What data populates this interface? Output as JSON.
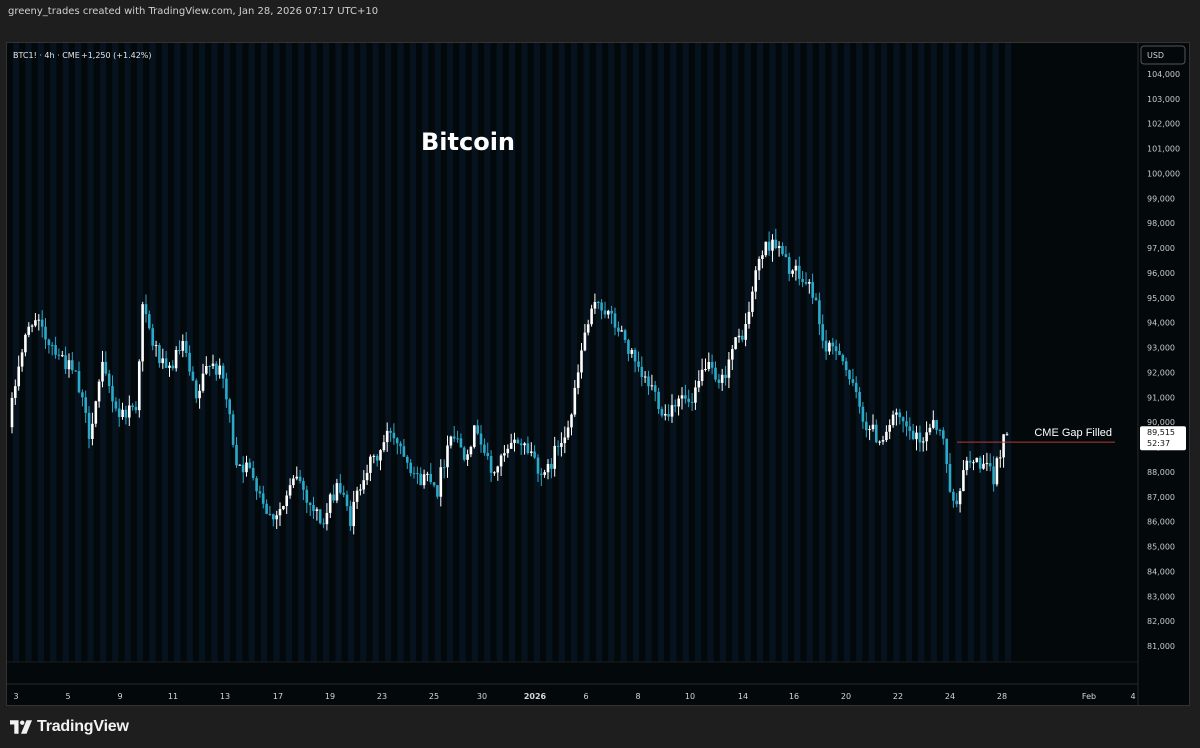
{
  "header": {
    "credit": "greeny_trades created with TradingView.com, Jan 28, 2026 07:17 UTC+10"
  },
  "footer": {
    "brand": "TradingView"
  },
  "colors": {
    "up": "#ffffff",
    "down": "#2aa9c9",
    "background": "#03080b",
    "stripe": "#06121d",
    "gap_line": "#b23b3b"
  },
  "chart_data": {
    "type": "candlestick",
    "title": "Bitcoin",
    "symbol_info": "BTC1! · 4h · CME",
    "change": "+1,250 (+1.42%)",
    "currency": "USD",
    "price_axis": {
      "min": 80000,
      "max": 105000,
      "ticks": [
        "104,000",
        "103,000",
        "102,000",
        "101,000",
        "100,000",
        "99,000",
        "98,000",
        "97,000",
        "96,000",
        "95,000",
        "94,000",
        "93,000",
        "92,000",
        "91,000",
        "90,000",
        "89,000",
        "88,000",
        "87,000",
        "86,000",
        "85,000",
        "84,000",
        "83,000",
        "82,000",
        "81,000"
      ]
    },
    "date_axis": [
      "3",
      "5",
      "9",
      "11",
      "13",
      "17",
      "19",
      "23",
      "25",
      "30",
      "2026",
      "6",
      "8",
      "10",
      "14",
      "16",
      "20",
      "22",
      "24",
      "28",
      "Feb",
      "4"
    ],
    "last_price": {
      "price": "89,515",
      "countdown": "52:37",
      "value": 89515
    },
    "annotation": {
      "label": "CME Gap Filled",
      "price": 89200
    },
    "path": [
      [
        0,
        89800
      ],
      [
        3,
        92400
      ],
      [
        7,
        94200
      ],
      [
        10,
        93600
      ],
      [
        14,
        93000
      ],
      [
        20,
        91800
      ],
      [
        24,
        89600
      ],
      [
        28,
        92100
      ],
      [
        33,
        90300
      ],
      [
        38,
        90700
      ],
      [
        40,
        94600
      ],
      [
        43,
        93200
      ],
      [
        47,
        91900
      ],
      [
        52,
        93100
      ],
      [
        56,
        90800
      ],
      [
        60,
        92600
      ],
      [
        64,
        91700
      ],
      [
        68,
        88500
      ],
      [
        73,
        87900
      ],
      [
        78,
        86200
      ],
      [
        82,
        86600
      ],
      [
        86,
        87900
      ],
      [
        90,
        86700
      ],
      [
        94,
        85900
      ],
      [
        98,
        87600
      ],
      [
        102,
        86100
      ],
      [
        106,
        88000
      ],
      [
        110,
        88600
      ],
      [
        114,
        89700
      ],
      [
        118,
        88900
      ],
      [
        122,
        87700
      ],
      [
        126,
        87900
      ],
      [
        128,
        87300
      ],
      [
        132,
        89700
      ],
      [
        136,
        88800
      ],
      [
        140,
        89800
      ],
      [
        144,
        87900
      ],
      [
        148,
        88600
      ],
      [
        152,
        89300
      ],
      [
        156,
        88800
      ],
      [
        160,
        87700
      ],
      [
        164,
        89100
      ],
      [
        168,
        90300
      ],
      [
        172,
        93600
      ],
      [
        176,
        94900
      ],
      [
        180,
        94100
      ],
      [
        184,
        93300
      ],
      [
        188,
        91900
      ],
      [
        192,
        91400
      ],
      [
        196,
        90300
      ],
      [
        200,
        91100
      ],
      [
        204,
        90600
      ],
      [
        208,
        92400
      ],
      [
        212,
        91300
      ],
      [
        216,
        92900
      ],
      [
        220,
        93800
      ],
      [
        224,
        96600
      ],
      [
        228,
        97400
      ],
      [
        232,
        96400
      ],
      [
        236,
        95800
      ],
      [
        240,
        95300
      ],
      [
        244,
        92800
      ],
      [
        248,
        93000
      ],
      [
        252,
        91300
      ],
      [
        256,
        89900
      ],
      [
        260,
        89300
      ],
      [
        264,
        90200
      ],
      [
        268,
        89700
      ],
      [
        272,
        89100
      ],
      [
        276,
        90200
      ],
      [
        279,
        89200
      ],
      [
        282,
        86600
      ],
      [
        286,
        88300
      ],
      [
        290,
        88400
      ],
      [
        294,
        87700
      ],
      [
        297,
        89515
      ]
    ],
    "candle_count": 298
  }
}
